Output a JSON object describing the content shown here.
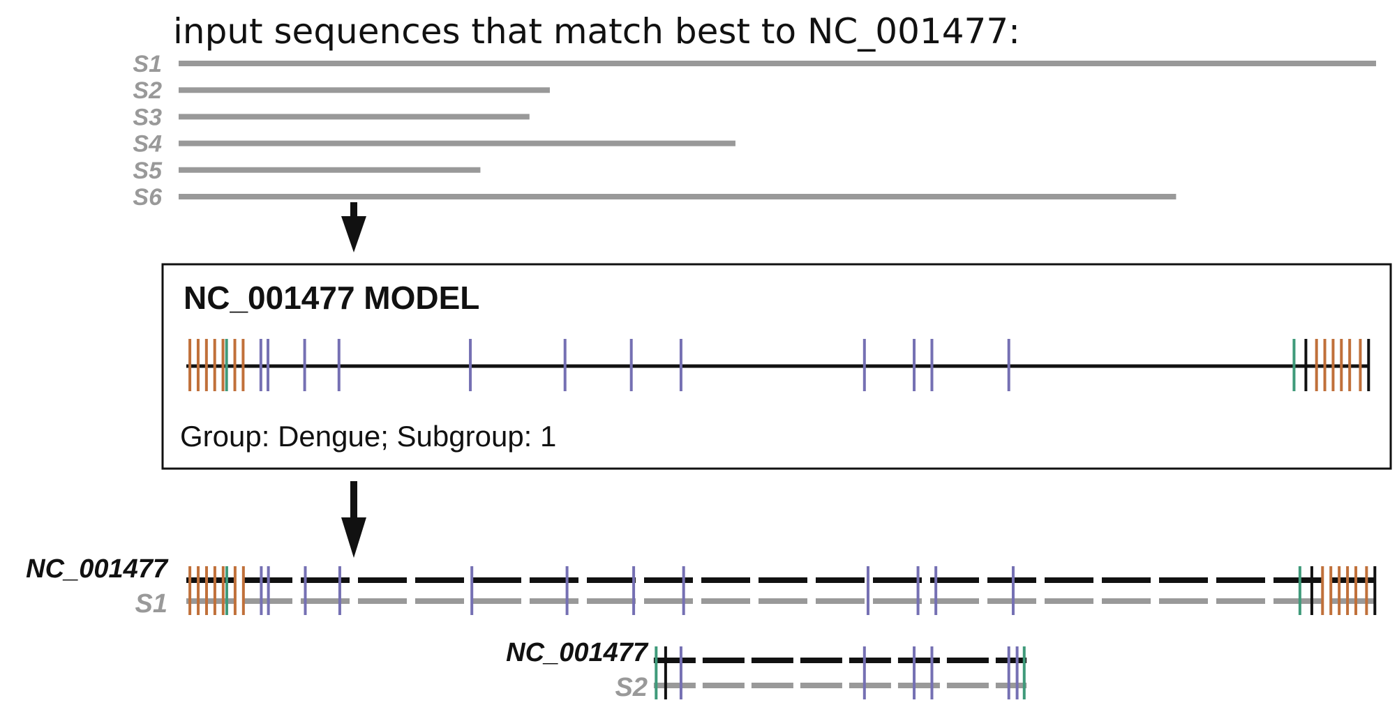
{
  "header": {
    "title": "input sequences that match best to NC_001477:"
  },
  "sequences": [
    {
      "label": "S1",
      "extent": [
        0,
        1.0
      ]
    },
    {
      "label": "S2",
      "extent": [
        0,
        0.31
      ]
    },
    {
      "label": "S3",
      "extent": [
        0,
        0.293
      ]
    },
    {
      "label": "S4",
      "extent": [
        0,
        0.465
      ]
    },
    {
      "label": "S5",
      "extent": [
        0,
        0.252
      ]
    },
    {
      "label": "S6",
      "extent": [
        0,
        0.833
      ]
    }
  ],
  "model": {
    "title": "NC_001477 MODEL",
    "caption": "Group: Dengue; Subgroup: 1"
  },
  "feature_colors": {
    "orange": "#c0703a",
    "green": "#3f9a7a",
    "purple": "#7570b3",
    "black": "#111111",
    "gray": "#999999"
  },
  "features": [
    {
      "pos": 0.003,
      "color": "orange"
    },
    {
      "pos": 0.01,
      "color": "orange"
    },
    {
      "pos": 0.017,
      "color": "orange"
    },
    {
      "pos": 0.024,
      "color": "orange"
    },
    {
      "pos": 0.031,
      "color": "orange"
    },
    {
      "pos": 0.034,
      "color": "green"
    },
    {
      "pos": 0.041,
      "color": "orange"
    },
    {
      "pos": 0.048,
      "color": "orange"
    },
    {
      "pos": 0.063,
      "color": "purple"
    },
    {
      "pos": 0.069,
      "color": "purple"
    },
    {
      "pos": 0.1,
      "color": "purple"
    },
    {
      "pos": 0.129,
      "color": "purple"
    },
    {
      "pos": 0.24,
      "color": "purple"
    },
    {
      "pos": 0.32,
      "color": "purple"
    },
    {
      "pos": 0.376,
      "color": "purple"
    },
    {
      "pos": 0.418,
      "color": "purple"
    },
    {
      "pos": 0.573,
      "color": "purple"
    },
    {
      "pos": 0.615,
      "color": "purple"
    },
    {
      "pos": 0.63,
      "color": "purple"
    },
    {
      "pos": 0.695,
      "color": "purple"
    },
    {
      "pos": 0.936,
      "color": "green"
    },
    {
      "pos": 0.946,
      "color": "black"
    },
    {
      "pos": 0.955,
      "color": "orange"
    },
    {
      "pos": 0.962,
      "color": "orange"
    },
    {
      "pos": 0.969,
      "color": "orange"
    },
    {
      "pos": 0.976,
      "color": "orange"
    },
    {
      "pos": 0.983,
      "color": "orange"
    },
    {
      "pos": 0.992,
      "color": "orange"
    },
    {
      "pos": 0.999,
      "color": "black"
    }
  ],
  "alignments": [
    {
      "ref_label": "NC_001477",
      "seq_label": "S1",
      "range": [
        0.0,
        1.0
      ]
    },
    {
      "ref_label": "NC_001477",
      "seq_label": "S2",
      "range": [
        0.395,
        0.71
      ],
      "feature_override": [
        {
          "pos": 0.397,
          "color": "green"
        },
        {
          "pos": 0.405,
          "color": "black"
        },
        {
          "pos": 0.418,
          "color": "purple"
        },
        {
          "pos": 0.573,
          "color": "purple"
        },
        {
          "pos": 0.615,
          "color": "purple"
        },
        {
          "pos": 0.63,
          "color": "purple"
        },
        {
          "pos": 0.695,
          "color": "purple"
        },
        {
          "pos": 0.702,
          "color": "purple"
        },
        {
          "pos": 0.708,
          "color": "green"
        }
      ]
    }
  ]
}
